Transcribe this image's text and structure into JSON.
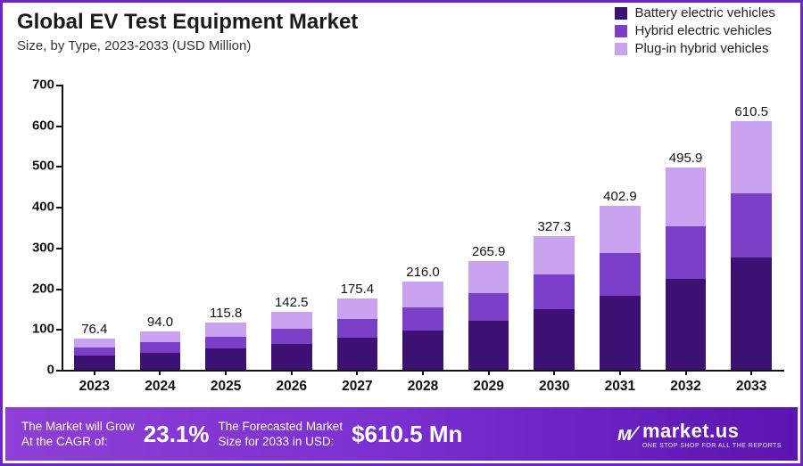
{
  "title": "Global EV Test Equipment Market",
  "subtitle": "Size, by Type, 2023-2033 (USD Million)",
  "legend": [
    {
      "label": "Battery electric vehicles",
      "color": "#3d1173"
    },
    {
      "label": "Hybrid electric vehicles",
      "color": "#7b3fc7"
    },
    {
      "label": "Plug-in hybrid vehicles",
      "color": "#c9a3ef"
    }
  ],
  "chart": {
    "type": "stacked-bar",
    "ylim": [
      0,
      700
    ],
    "ytick_step": 100,
    "y_title": "700",
    "categories": [
      "2023",
      "2024",
      "2025",
      "2026",
      "2027",
      "2028",
      "2029",
      "2030",
      "2031",
      "2032",
      "2033"
    ],
    "totals": [
      76.4,
      94.0,
      115.8,
      142.5,
      175.4,
      216.0,
      265.9,
      327.3,
      402.9,
      495.9,
      610.5
    ],
    "series": [
      {
        "name": "Battery electric vehicles",
        "color": "#3d1173",
        "values": [
          34,
          42,
          52,
          64,
          79,
          97,
          120,
          148,
          182,
          223,
          275
        ]
      },
      {
        "name": "Hybrid electric vehicles",
        "color": "#7b3fc7",
        "values": [
          20,
          25,
          30,
          37,
          46,
          56,
          69,
          85,
          105,
          129,
          159
        ]
      },
      {
        "name": "Plug-in hybrid vehicles",
        "color": "#c9a3ef",
        "values": [
          22.4,
          27.0,
          33.8,
          41.5,
          50.4,
          63.0,
          76.9,
          94.3,
          115.9,
          143.9,
          176.5
        ]
      }
    ],
    "bar_width_ratio": 0.62,
    "axis_color": "#111111",
    "tick_color": "#111111",
    "label_fontsize": 15,
    "label_fontweight": 800,
    "background_color": "#ffffff"
  },
  "footer": {
    "cagr_label_l1": "The Market will Grow",
    "cagr_label_l2": "At the CAGR of:",
    "cagr_value": "23.1%",
    "forecast_label_l1": "The Forecasted Market",
    "forecast_label_l2": "Size for 2033 in USD:",
    "forecast_value": "$610.5 Mn",
    "brand_name": "market.us",
    "brand_tagline": "ONE STOP SHOP FOR ALL THE REPORTS",
    "brand_logo_text": "ᴍ⁄"
  }
}
